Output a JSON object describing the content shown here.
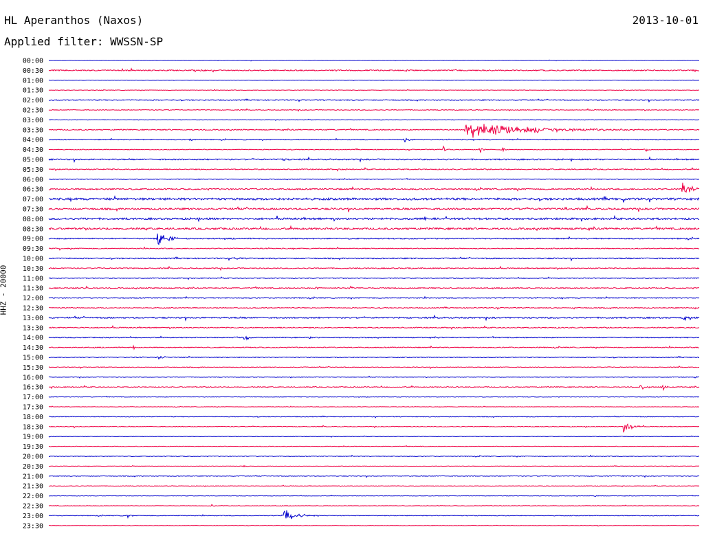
{
  "header": {
    "station": "HL Aperanthos (Naxos)",
    "date": "2013-10-01",
    "filter": "Applied filter: WWSSN-SP",
    "channel": "HHZ - 20000"
  },
  "colors": {
    "trace_a": "#0000cc",
    "trace_b": "#ee0044",
    "text": "#000000",
    "background": "#ffffff"
  },
  "chart_data": {
    "type": "line",
    "subtype": "helicorder",
    "title": "HL Aperanthos (Naxos)",
    "ylabel": "HHZ - 20000",
    "trace_duration_minutes": 30,
    "x_range_minutes": [
      0,
      30
    ],
    "row_labels": [
      "00:00",
      "00:30",
      "01:00",
      "01:30",
      "02:00",
      "02:30",
      "03:00",
      "03:30",
      "04:00",
      "04:30",
      "05:00",
      "05:30",
      "06:00",
      "06:30",
      "07:00",
      "07:30",
      "08:00",
      "08:30",
      "09:00",
      "09:30",
      "10:00",
      "10:30",
      "11:00",
      "11:30",
      "12:00",
      "12:30",
      "13:00",
      "13:30",
      "14:00",
      "14:30",
      "15:00",
      "15:30",
      "16:00",
      "16:30",
      "17:00",
      "17:30",
      "18:00",
      "18:30",
      "19:00",
      "19:30",
      "20:00",
      "20:30",
      "21:00",
      "21:30",
      "22:00",
      "22:30",
      "23:00",
      "23:30"
    ],
    "color_cycle": [
      "blue",
      "red"
    ],
    "noise_levels": [
      0.3,
      1.0,
      0.3,
      0.4,
      0.8,
      0.6,
      0.4,
      0.9,
      0.7,
      0.6,
      1.1,
      0.9,
      0.6,
      1.2,
      1.8,
      1.5,
      1.6,
      1.6,
      1.0,
      0.8,
      1.0,
      0.9,
      0.7,
      0.9,
      0.8,
      0.7,
      1.2,
      0.9,
      0.8,
      0.8,
      0.7,
      0.6,
      0.5,
      0.8,
      0.5,
      0.4,
      0.6,
      0.6,
      0.4,
      0.5,
      0.6,
      0.4,
      0.6,
      0.4,
      0.4,
      0.4,
      0.6,
      0.3
    ],
    "events": [
      {
        "row": "00:30",
        "minute": 7.0,
        "amplitude": 2.5,
        "duration": 1.3
      },
      {
        "row": "03:30",
        "minute": 19.2,
        "amplitude": 14,
        "duration": 8.5
      },
      {
        "row": "04:00",
        "minute": 6.5,
        "amplitude": 2.5,
        "duration": 0.6
      },
      {
        "row": "04:00",
        "minute": 16.4,
        "amplitude": 6,
        "duration": 0.5
      },
      {
        "row": "04:30",
        "minute": 18.2,
        "amplitude": 6,
        "duration": 0.4
      },
      {
        "row": "04:30",
        "minute": 19.9,
        "amplitude": 8,
        "duration": 0.4
      },
      {
        "row": "04:30",
        "minute": 20.9,
        "amplitude": 7,
        "duration": 0.3
      },
      {
        "row": "04:30",
        "minute": 27.5,
        "amplitude": 6,
        "duration": 0.3
      },
      {
        "row": "05:00",
        "minute": 10.8,
        "amplitude": 2.5,
        "duration": 0.6
      },
      {
        "row": "05:30",
        "minute": 13.6,
        "amplitude": 4,
        "duration": 0.2
      },
      {
        "row": "06:30",
        "minute": 29.2,
        "amplitude": 14,
        "duration": 1.2
      },
      {
        "row": "07:00",
        "minute": 26.5,
        "amplitude": 5,
        "duration": 0.3
      },
      {
        "row": "07:30",
        "minute": 23.8,
        "amplitude": 7,
        "duration": 0.4
      },
      {
        "row": "08:00",
        "minute": 17.3,
        "amplitude": 7,
        "duration": 0.4
      },
      {
        "row": "08:00",
        "minute": 18.3,
        "amplitude": 9,
        "duration": 0.4
      },
      {
        "row": "08:00",
        "minute": 19.1,
        "amplitude": 6,
        "duration": 0.6
      },
      {
        "row": "09:00",
        "minute": 5.0,
        "amplitude": 12,
        "duration": 1.5
      },
      {
        "row": "09:00",
        "minute": 27.8,
        "amplitude": 4,
        "duration": 0.2
      },
      {
        "row": "09:30",
        "minute": 0.5,
        "amplitude": 3,
        "duration": 0.3
      },
      {
        "row": "10:00",
        "minute": 8.6,
        "amplitude": 4,
        "duration": 0.3
      },
      {
        "row": "10:30",
        "minute": 16.6,
        "amplitude": 5,
        "duration": 0.4
      },
      {
        "row": "11:30",
        "minute": 1.7,
        "amplitude": 6,
        "duration": 0.3
      },
      {
        "row": "11:30",
        "minute": 12.3,
        "amplitude": 7,
        "duration": 0.3
      },
      {
        "row": "11:30",
        "minute": 13.9,
        "amplitude": 5,
        "duration": 0.3
      },
      {
        "row": "12:00",
        "minute": 21.0,
        "amplitude": 2,
        "duration": 0.5
      },
      {
        "row": "12:30",
        "minute": 24.2,
        "amplitude": 4,
        "duration": 0.2
      },
      {
        "row": "12:30",
        "minute": 29.8,
        "amplitude": 5,
        "duration": 0.2
      },
      {
        "row": "13:00",
        "minute": 29.3,
        "amplitude": 4,
        "duration": 0.5
      },
      {
        "row": "14:00",
        "minute": 8.6,
        "amplitude": 4,
        "duration": 0.4
      },
      {
        "row": "14:00",
        "minute": 9.0,
        "amplitude": 6,
        "duration": 0.6
      },
      {
        "row": "14:00",
        "minute": 12.0,
        "amplitude": 4,
        "duration": 0.2
      },
      {
        "row": "14:00",
        "minute": 18.0,
        "amplitude": 3,
        "duration": 0.2
      },
      {
        "row": "14:30",
        "minute": 3.9,
        "amplitude": 4,
        "duration": 0.3
      },
      {
        "row": "15:00",
        "minute": 5.0,
        "amplitude": 3,
        "duration": 1.0
      },
      {
        "row": "16:00",
        "minute": 29.8,
        "amplitude": 3,
        "duration": 0.2
      },
      {
        "row": "16:30",
        "minute": 27.3,
        "amplitude": 8,
        "duration": 0.4
      },
      {
        "row": "16:30",
        "minute": 28.3,
        "amplitude": 8,
        "duration": 0.4
      },
      {
        "row": "18:30",
        "minute": 26.5,
        "amplitude": 16,
        "duration": 0.9
      },
      {
        "row": "20:30",
        "minute": 9.0,
        "amplitude": 3,
        "duration": 0.3
      },
      {
        "row": "21:00",
        "minute": 26.0,
        "amplitude": 2.5,
        "duration": 1.0
      },
      {
        "row": "22:00",
        "minute": 25.2,
        "amplitude": 3,
        "duration": 0.2
      },
      {
        "row": "22:30",
        "minute": 7.5,
        "amplitude": 2,
        "duration": 0.5
      },
      {
        "row": "23:00",
        "minute": 3.6,
        "amplitude": 5,
        "duration": 0.4
      },
      {
        "row": "23:00",
        "minute": 10.8,
        "amplitude": 12,
        "duration": 1.8
      }
    ]
  }
}
